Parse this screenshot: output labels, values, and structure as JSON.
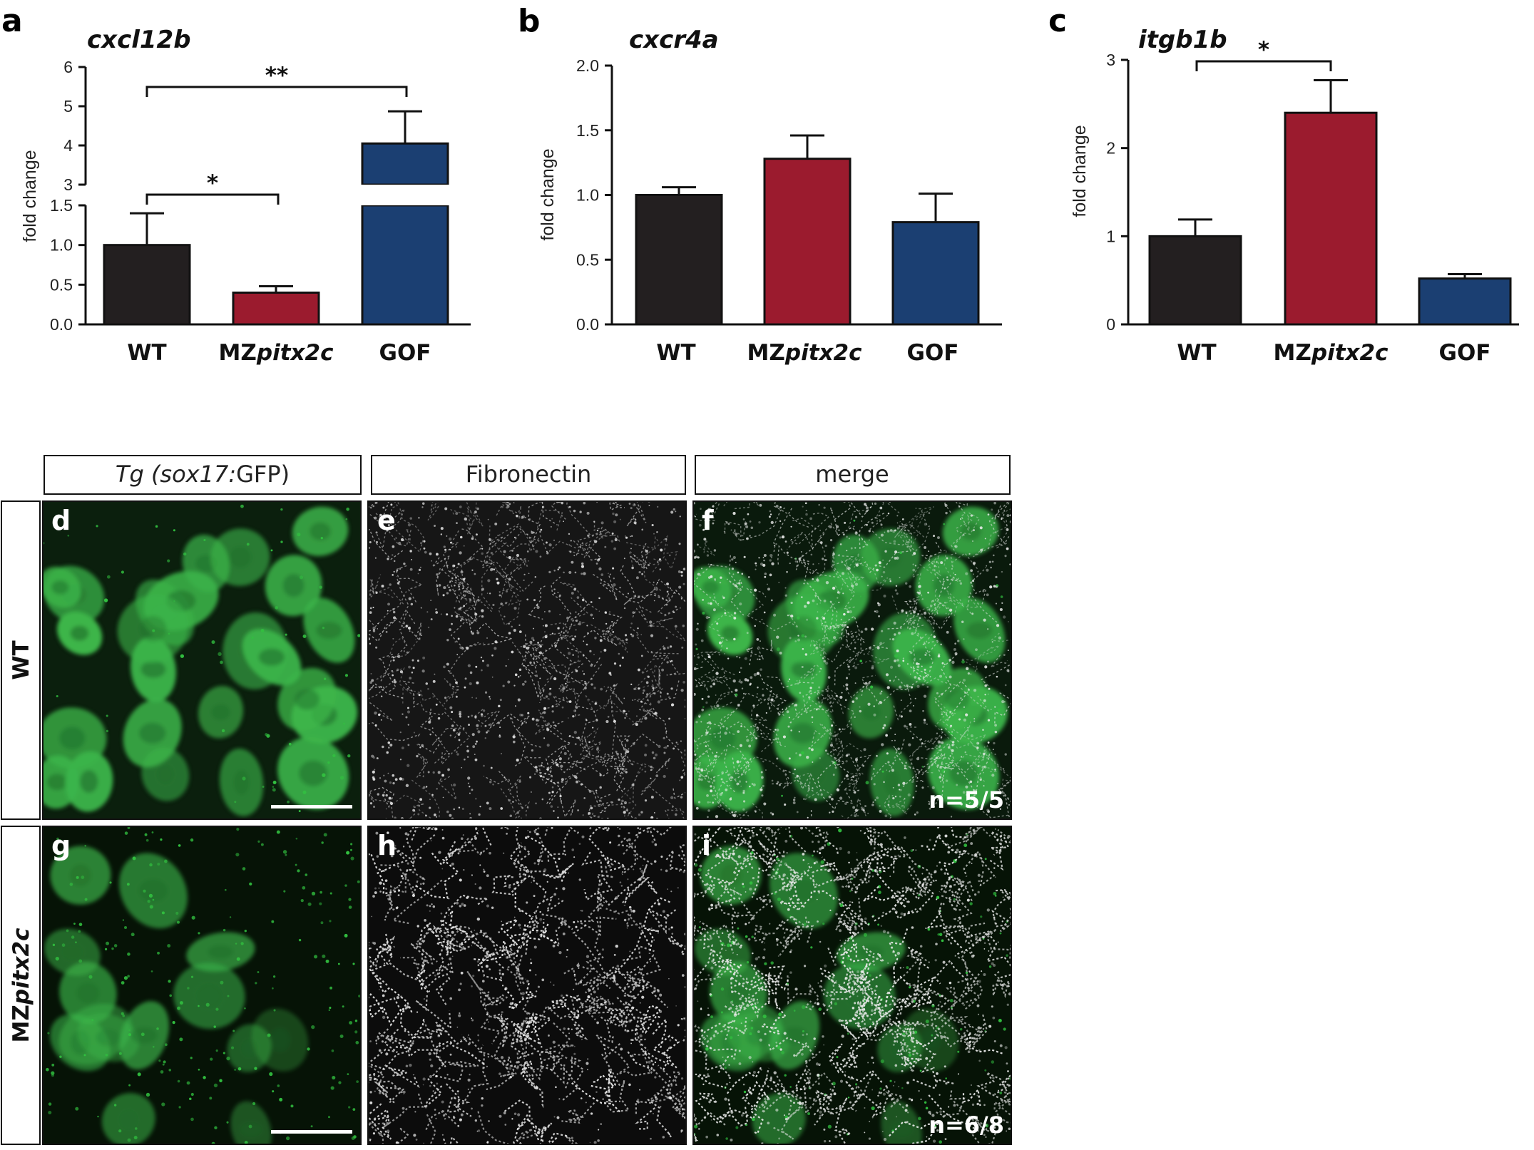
{
  "panel_labels": {
    "a": "a",
    "b": "b",
    "c": "c",
    "d": "d",
    "e": "e",
    "f": "f",
    "g": "g",
    "h": "h",
    "i": "i"
  },
  "colors": {
    "WT": "#231f20",
    "MZpitx2c": "#9b1b2e",
    "GOF": "#1b3f72"
  },
  "chart_data": [
    {
      "panel": "a",
      "type": "bar",
      "title": "cxcl12b",
      "ylabel": "fold change",
      "categories": [
        "WT",
        "MZpitx2c",
        "GOF"
      ],
      "category_labels": [
        {
          "plain": "WT",
          "italic": ""
        },
        {
          "plain": "MZ",
          "italic": "pitx2c"
        },
        {
          "plain": "GOF",
          "italic": ""
        }
      ],
      "values": [
        1.0,
        0.4,
        4.05
      ],
      "errors": [
        0.4,
        0.08,
        0.82
      ],
      "broken_axis": {
        "lower": [
          0,
          1.5
        ],
        "upper": [
          3,
          6
        ]
      },
      "lower_ticks": [
        "0.0",
        "0.5",
        "1.0",
        "1.5"
      ],
      "upper_ticks": [
        "3",
        "4",
        "5",
        "6"
      ],
      "significance": [
        {
          "from": "WT",
          "to": "MZpitx2c",
          "label": "*"
        },
        {
          "from": "WT",
          "to": "GOF",
          "label": "**"
        }
      ]
    },
    {
      "panel": "b",
      "type": "bar",
      "title": "cxcr4a",
      "ylabel": "fold change",
      "categories": [
        "WT",
        "MZpitx2c",
        "GOF"
      ],
      "category_labels": [
        {
          "plain": "WT",
          "italic": ""
        },
        {
          "plain": "MZ",
          "italic": "pitx2c"
        },
        {
          "plain": "GOF",
          "italic": ""
        }
      ],
      "values": [
        1.0,
        1.28,
        0.79
      ],
      "errors": [
        0.06,
        0.18,
        0.22
      ],
      "ylim": [
        0,
        2.0
      ],
      "ticks": [
        "0.0",
        "0.5",
        "1.0",
        "1.5",
        "2.0"
      ],
      "significance": []
    },
    {
      "panel": "c",
      "type": "bar",
      "title": "itgb1b",
      "ylabel": "fold change",
      "categories": [
        "WT",
        "MZpitx2c",
        "GOF"
      ],
      "category_labels": [
        {
          "plain": "WT",
          "italic": ""
        },
        {
          "plain": "MZ",
          "italic": "pitx2c"
        },
        {
          "plain": "GOF",
          "italic": ""
        }
      ],
      "values": [
        1.0,
        2.4,
        0.52
      ],
      "errors": [
        0.19,
        0.37,
        0.05
      ],
      "ylim": [
        0,
        3
      ],
      "ticks": [
        "0",
        "1",
        "2",
        "3"
      ],
      "significance": [
        {
          "from": "WT",
          "to": "MZpitx2c",
          "label": "*"
        }
      ]
    }
  ],
  "micrographs": {
    "column_headers": [
      {
        "italic": "Tg (sox17:",
        "plain": "GFP)"
      },
      {
        "italic": "",
        "plain": "Fibronectin"
      },
      {
        "italic": "",
        "plain": "merge"
      }
    ],
    "row_labels": [
      {
        "plain": "WT",
        "italic": ""
      },
      {
        "plain": "MZ",
        "italic": "pitx2c"
      }
    ],
    "panels": [
      {
        "label": "d",
        "channel": "GFP",
        "row": 0,
        "col": 0
      },
      {
        "label": "e",
        "channel": "Fibronectin",
        "row": 0,
        "col": 1
      },
      {
        "label": "f",
        "channel": "merge",
        "row": 0,
        "col": 2,
        "count": "n=5/5"
      },
      {
        "label": "g",
        "channel": "GFP",
        "row": 1,
        "col": 0
      },
      {
        "label": "h",
        "channel": "Fibronectin",
        "row": 1,
        "col": 1
      },
      {
        "label": "i",
        "channel": "merge",
        "row": 1,
        "col": 2,
        "count": "n=6/8"
      }
    ]
  }
}
